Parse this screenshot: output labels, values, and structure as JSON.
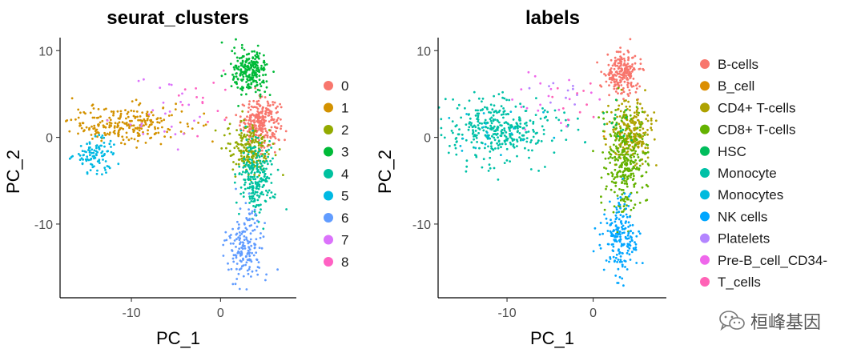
{
  "watermark": {
    "text": "桓峰基因",
    "icon": "wechat-icon"
  },
  "chart_data": [
    {
      "type": "scatter",
      "title": "seurat_clusters",
      "xlabel": "PC_1",
      "ylabel": "PC_2",
      "xlim": [
        -18,
        8.5
      ],
      "ylim": [
        -18.5,
        11.5
      ],
      "xticks": [
        -10,
        0
      ],
      "yticks": [
        10,
        0,
        -10
      ],
      "xtick_labels": [
        "-10",
        "0"
      ],
      "ytick_labels": [
        "10",
        "0",
        "-10"
      ],
      "legend_position": "right",
      "legend_marker": "circle",
      "series": [
        {
          "name": "0",
          "color": "#F8766D",
          "clusters": [
            {
              "cx": 4.5,
              "cy": 1.8,
              "sx": 1.1,
              "sy": 1.3,
              "n": 260
            }
          ]
        },
        {
          "name": "1",
          "color": "#D39200",
          "clusters": [
            {
              "cx": -10.5,
              "cy": 1.5,
              "sx": 3.2,
              "sy": 1.1,
              "n": 240
            }
          ]
        },
        {
          "name": "2",
          "color": "#93AA00",
          "clusters": [
            {
              "cx": 3.2,
              "cy": -1.2,
              "sx": 1.3,
              "sy": 1.5,
              "n": 190
            }
          ]
        },
        {
          "name": "3",
          "color": "#00BA38",
          "clusters": [
            {
              "cx": 3.3,
              "cy": 7.5,
              "sx": 1.0,
              "sy": 1.3,
              "n": 230
            }
          ]
        },
        {
          "name": "4",
          "color": "#00C19F",
          "clusters": [
            {
              "cx": 4.0,
              "cy": -4.5,
              "sx": 1.0,
              "sy": 2.2,
              "n": 230
            }
          ]
        },
        {
          "name": "5",
          "color": "#00B9E3",
          "clusters": [
            {
              "cx": -14.0,
              "cy": -2.0,
              "sx": 1.2,
              "sy": 1.0,
              "n": 100
            }
          ]
        },
        {
          "name": "6",
          "color": "#619CFF",
          "clusters": [
            {
              "cx": 2.8,
              "cy": -12.5,
              "sx": 1.0,
              "sy": 2.0,
              "n": 170
            }
          ]
        },
        {
          "name": "7",
          "color": "#DB72FB",
          "clusters": [
            {
              "cx": -6.0,
              "cy": 3.5,
              "sx": 2.5,
              "sy": 2.0,
              "n": 25
            }
          ]
        },
        {
          "name": "8",
          "color": "#FF61C3",
          "clusters": [
            {
              "cx": -2.0,
              "cy": 5.0,
              "sx": 1.5,
              "sy": 1.5,
              "n": 15
            }
          ]
        }
      ]
    },
    {
      "type": "scatter",
      "title": "labels",
      "xlabel": "PC_1",
      "ylabel": "PC_2",
      "xlim": [
        -18,
        8.5
      ],
      "ylim": [
        -18.5,
        11.5
      ],
      "xticks": [
        -10,
        0
      ],
      "yticks": [
        10,
        0,
        -10
      ],
      "xtick_labels": [
        "-10",
        "0"
      ],
      "ytick_labels": [
        "10",
        "0",
        "-10"
      ],
      "legend_position": "right",
      "legend_marker": "circle",
      "series": [
        {
          "name": "B-cells",
          "color": "#F8766D",
          "clusters": [
            {
              "cx": 3.3,
              "cy": 7.5,
              "sx": 1.0,
              "sy": 1.3,
              "n": 220
            }
          ]
        },
        {
          "name": "B_cell",
          "color": "#DB8E00",
          "clusters": [
            {
              "cx": 3.0,
              "cy": 0.0,
              "sx": 1.0,
              "sy": 1.0,
              "n": 8
            }
          ]
        },
        {
          "name": "CD4+ T-cells",
          "color": "#AEA200",
          "clusters": [
            {
              "cx": 4.5,
              "cy": 0.8,
              "sx": 1.2,
              "sy": 1.6,
              "n": 230
            }
          ]
        },
        {
          "name": "CD8+ T-cells",
          "color": "#64B200",
          "clusters": [
            {
              "cx": 3.6,
              "cy": -3.0,
              "sx": 1.2,
              "sy": 3.0,
              "n": 300
            }
          ]
        },
        {
          "name": "HSC",
          "color": "#00BD5C",
          "clusters": [
            {
              "cx": 3.0,
              "cy": 2.0,
              "sx": 1.0,
              "sy": 1.0,
              "n": 15
            }
          ]
        },
        {
          "name": "Monocyte",
          "color": "#00C1A7",
          "clusters": [
            {
              "cx": -11.0,
              "cy": 0.8,
              "sx": 3.2,
              "sy": 1.8,
              "n": 360
            }
          ]
        },
        {
          "name": "Monocytes",
          "color": "#00BADE",
          "clusters": [
            {
              "cx": -11.0,
              "cy": 0.5,
              "sx": 3.0,
              "sy": 1.5,
              "n": 20
            }
          ]
        },
        {
          "name": "NK cells",
          "color": "#00A6FF",
          "clusters": [
            {
              "cx": 3.2,
              "cy": -11.5,
              "sx": 1.0,
              "sy": 2.3,
              "n": 190
            }
          ]
        },
        {
          "name": "Platelets",
          "color": "#B385FF",
          "clusters": [
            {
              "cx": -4.0,
              "cy": 5.0,
              "sx": 1.5,
              "sy": 1.0,
              "n": 10
            }
          ]
        },
        {
          "name": "Pre-B_cell_CD34-",
          "color": "#EF67EB",
          "clusters": [
            {
              "cx": -5.0,
              "cy": 3.5,
              "sx": 2.5,
              "sy": 2.0,
              "n": 20
            }
          ]
        },
        {
          "name": "T_cells",
          "color": "#FF63B6",
          "clusters": [
            {
              "cx": -2.0,
              "cy": 4.0,
              "sx": 1.5,
              "sy": 1.5,
              "n": 10
            }
          ]
        }
      ]
    }
  ]
}
